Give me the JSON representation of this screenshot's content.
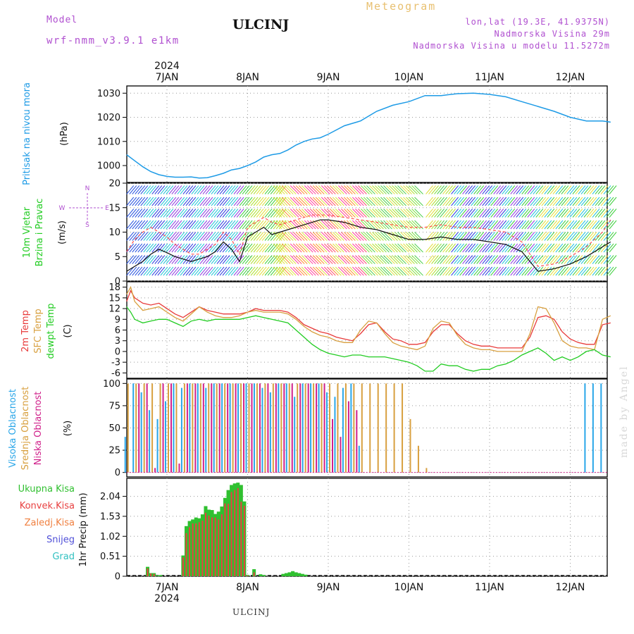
{
  "header": {
    "model_label": "Model",
    "model_name": "wrf-nmm_v3.9.1 e1km",
    "station": "ULCINJ",
    "title": "Meteogram",
    "location_line1": "lon,lat (19.3E, 41.9375N)",
    "location_line2": "Nadmorska Visina 29m",
    "location_line3": "Nadmorska Visina u modelu 11.5272m"
  },
  "footer": {
    "station": "ULCINJ",
    "watermark": "made by Angel"
  },
  "colors": {
    "pressure": "#1e9be6",
    "temp2m": "#e83a3a",
    "sfc": "#d8a040",
    "dew": "#22cc22",
    "high": "#29a6e8",
    "mid": "#d8a040",
    "low": "#d0208a",
    "total": "#30c030",
    "conv": "#e84040",
    "frozen": "#f08040",
    "snow": "#5050d8",
    "hail": "#30c0c0"
  },
  "chart_data": [
    {
      "type": "line",
      "panel": "pressure",
      "ylabel": "Pritisak na nivou mora",
      "unit": "(hPa)",
      "ylim": [
        993,
        1033
      ],
      "yticks": [
        1000,
        1010,
        1020,
        1030
      ],
      "x_dates": [
        "7JAN",
        "8JAN",
        "9JAN",
        "10JAN",
        "11JAN",
        "12JAN"
      ],
      "year": "2024",
      "x_days": [
        -0.5,
        -0.4,
        -0.3,
        -0.2,
        -0.1,
        0.0,
        0.1,
        0.2,
        0.3,
        0.4,
        0.5,
        0.6,
        0.7,
        0.8,
        0.9,
        1.0,
        1.1,
        1.2,
        1.3,
        1.4,
        1.5,
        1.6,
        1.7,
        1.8,
        1.9,
        2.0,
        2.2,
        2.4,
        2.6,
        2.8,
        3.0,
        3.2,
        3.4,
        3.6,
        3.8,
        4.0,
        4.2,
        4.4,
        4.6,
        4.8,
        5.0,
        5.2,
        5.4,
        5.5
      ],
      "values": [
        1004.5,
        1002,
        999.5,
        997.5,
        996.2,
        995.5,
        995.2,
        995.2,
        995.3,
        994.8,
        995,
        995.8,
        996.8,
        998.2,
        998.8,
        1000,
        1001.5,
        1003.5,
        1004.5,
        1005,
        1006.5,
        1008.5,
        1010,
        1011,
        1011.5,
        1013,
        1016.5,
        1018.5,
        1022.5,
        1025,
        1026.5,
        1029,
        1029,
        1029.8,
        1030,
        1029.5,
        1028.5,
        1026.5,
        1024.5,
        1022.5,
        1020,
        1018.5,
        1018.5,
        1018
      ]
    },
    {
      "type": "line",
      "panel": "wind",
      "ylabel": "10m Vjetar Brzina i Pravac",
      "unit": "(m/s)",
      "compass": {
        "n": "N",
        "s": "S",
        "e": "E",
        "w": "W"
      },
      "ylim": [
        0,
        20
      ],
      "yticks": [
        0,
        5,
        10,
        15,
        20
      ],
      "x_days": [
        -0.5,
        -0.4,
        -0.3,
        -0.2,
        -0.1,
        0.0,
        0.1,
        0.2,
        0.3,
        0.4,
        0.5,
        0.6,
        0.7,
        0.8,
        0.9,
        1.0,
        1.1,
        1.2,
        1.3,
        1.4,
        1.5,
        1.6,
        1.7,
        1.8,
        1.9,
        2.0,
        2.2,
        2.4,
        2.6,
        2.8,
        3.0,
        3.2,
        3.4,
        3.6,
        3.8,
        4.0,
        4.2,
        4.4,
        4.6,
        4.8,
        5.0,
        5.2,
        5.4,
        5.5
      ],
      "series": [
        {
          "name": "speed",
          "values": [
            2,
            3,
            4,
            5.5,
            6.5,
            5.8,
            5,
            4.5,
            4,
            4.5,
            5,
            6,
            8,
            6.5,
            4,
            9,
            10,
            11,
            9.5,
            10,
            10.5,
            11,
            11.5,
            12,
            12.5,
            12.5,
            12,
            11,
            10.5,
            9.5,
            8.5,
            8.5,
            9,
            8.5,
            8.5,
            8,
            7.5,
            6,
            2,
            2.5,
            3.5,
            5,
            7,
            8
          ]
        },
        {
          "name": "gust",
          "values": [
            6,
            8.5,
            10,
            11,
            10,
            9,
            7.5,
            6.5,
            5.5,
            5.5,
            6.5,
            7.5,
            10,
            8.5,
            5.5,
            11,
            12,
            13,
            12,
            11.5,
            12,
            12.5,
            13,
            13.5,
            13.5,
            13.5,
            13,
            12.5,
            12,
            11.5,
            11,
            11,
            11.5,
            11,
            11,
            10.5,
            10,
            8,
            3,
            3.5,
            5,
            7,
            10,
            12.5
          ]
        }
      ]
    },
    {
      "type": "line",
      "panel": "temperature",
      "ylabel_lines": [
        "2m Temp",
        "SFC Temp",
        "dewpt Temp"
      ],
      "unit": "(C)",
      "ylim": [
        -7.5,
        19.5
      ],
      "yticks": [
        -6,
        -3,
        0,
        3,
        6,
        9,
        12,
        15,
        18
      ],
      "x_days": [
        -0.5,
        -0.45,
        -0.4,
        -0.3,
        -0.2,
        -0.1,
        0.0,
        0.1,
        0.2,
        0.3,
        0.4,
        0.5,
        0.6,
        0.7,
        0.8,
        0.9,
        1.0,
        1.1,
        1.2,
        1.3,
        1.4,
        1.5,
        1.6,
        1.7,
        1.8,
        1.9,
        2.0,
        2.1,
        2.2,
        2.3,
        2.4,
        2.5,
        2.6,
        2.7,
        2.8,
        2.9,
        3.0,
        3.1,
        3.2,
        3.3,
        3.4,
        3.5,
        3.6,
        3.7,
        3.8,
        3.9,
        4.0,
        4.1,
        4.2,
        4.3,
        4.4,
        4.5,
        4.6,
        4.7,
        4.8,
        4.9,
        5.0,
        5.1,
        5.2,
        5.3,
        5.4,
        5.5
      ],
      "series": [
        {
          "name": "2m Temp",
          "values": [
            14,
            17,
            15,
            13.5,
            13,
            13.5,
            12,
            10.5,
            9.5,
            11,
            12.5,
            11.5,
            11,
            10.5,
            10.5,
            10.5,
            11,
            12,
            11.5,
            11.5,
            11.5,
            11,
            9.5,
            7.5,
            6.5,
            5.5,
            5,
            4,
            3.5,
            3,
            5,
            7.5,
            8,
            5.5,
            3.5,
            3,
            2,
            2,
            2.5,
            5.5,
            7.5,
            7.5,
            5,
            3,
            2,
            1.5,
            1.5,
            1,
            1,
            1,
            1,
            4,
            9.5,
            10,
            9,
            5.5,
            3.5,
            2.5,
            2,
            2,
            7.5,
            8
          ]
        },
        {
          "name": "SFC Temp",
          "values": [
            16,
            18,
            14,
            11.5,
            12,
            12.5,
            11,
            9.5,
            8.5,
            10.5,
            12.5,
            11,
            10,
            9.5,
            9.5,
            10,
            11,
            11.5,
            11,
            11,
            11,
            10.5,
            9,
            7,
            5.5,
            4.5,
            4,
            3,
            2.5,
            2.5,
            6,
            8.5,
            8,
            5,
            2.5,
            1.5,
            1,
            0.5,
            1.5,
            6.5,
            8.5,
            8,
            4.5,
            2,
            1,
            0.5,
            0.5,
            0,
            0,
            0,
            0,
            5,
            12.5,
            12,
            8,
            3,
            1.5,
            1,
            1,
            0.5,
            9,
            10
          ]
        },
        {
          "name": "dewpt Temp",
          "values": [
            12.5,
            11,
            9,
            8,
            8.5,
            9,
            9,
            8,
            7,
            8.5,
            9,
            8.5,
            9,
            9,
            9,
            9,
            9.5,
            10,
            9.5,
            9,
            8.5,
            8,
            6,
            4,
            2,
            0.5,
            -0.5,
            -1,
            -1.5,
            -1,
            -1,
            -1.5,
            -1.5,
            -1.5,
            -2,
            -2.5,
            -3,
            -4,
            -5.5,
            -5.5,
            -3.5,
            -4,
            -4,
            -5,
            -5.5,
            -5,
            -5,
            -4,
            -3.5,
            -2.5,
            -1,
            0,
            1,
            -0.5,
            -2.5,
            -1.5,
            -2.5,
            -1.5,
            0,
            0.5,
            -1,
            -1.5
          ]
        }
      ]
    },
    {
      "type": "bar",
      "panel": "clouds",
      "ylabel_lines": [
        "Visoka Oblacnost",
        "Srednja Oblacnost",
        "Niska Oblacnost"
      ],
      "unit": "(%)",
      "ylim": [
        -5,
        105
      ],
      "yticks": [
        0,
        25,
        50,
        75,
        100
      ],
      "x_days": [
        -0.5,
        -0.4,
        -0.3,
        -0.2,
        -0.1,
        0.0,
        0.1,
        0.2,
        0.3,
        0.4,
        0.5,
        0.6,
        0.7,
        0.8,
        0.9,
        1.0,
        1.1,
        1.2,
        1.3,
        1.4,
        1.5,
        1.6,
        1.7,
        1.8,
        1.9,
        2.0,
        2.1,
        2.2,
        2.3,
        2.4,
        2.5,
        2.6,
        2.7,
        2.8,
        2.9,
        3.0,
        3.1,
        3.2,
        3.3,
        3.4,
        4.2,
        4.3,
        4.4,
        4.5,
        4.6,
        4.7,
        4.8,
        4.9,
        5.0,
        5.1,
        5.2,
        5.3,
        5.4
      ],
      "series": [
        {
          "name": "Visoka Oblacnost",
          "values": [
            40,
            100,
            90,
            70,
            60,
            80,
            100,
            95,
            100,
            100,
            95,
            100,
            100,
            100,
            100,
            100,
            100,
            95,
            90,
            100,
            100,
            85,
            100,
            100,
            100,
            90,
            85,
            95,
            100,
            30,
            0,
            0,
            0,
            0,
            0,
            0,
            0,
            0,
            0,
            0,
            0,
            0,
            0,
            0,
            0,
            0,
            0,
            0,
            0,
            0,
            100,
            100,
            100
          ]
        },
        {
          "name": "Srednja Oblacnost",
          "values": [
            100,
            100,
            100,
            100,
            100,
            100,
            100,
            100,
            100,
            100,
            100,
            100,
            100,
            100,
            100,
            100,
            100,
            100,
            100,
            100,
            100,
            100,
            100,
            100,
            100,
            100,
            100,
            100,
            100,
            100,
            100,
            100,
            100,
            100,
            100,
            60,
            30,
            5,
            0,
            0,
            0,
            0,
            0,
            0,
            0,
            0,
            0,
            0,
            0,
            0,
            0,
            0,
            0
          ]
        },
        {
          "name": "Niska Oblacnost",
          "values": [
            0,
            100,
            100,
            5,
            100,
            100,
            10,
            100,
            100,
            100,
            100,
            100,
            100,
            100,
            100,
            100,
            100,
            100,
            100,
            100,
            100,
            100,
            100,
            100,
            100,
            60,
            40,
            80,
            70,
            0,
            0,
            0,
            0,
            0,
            0,
            0,
            0,
            0,
            0,
            0,
            0,
            0,
            0,
            0,
            0,
            0,
            0,
            0,
            0,
            0,
            0,
            0,
            0
          ]
        }
      ]
    },
    {
      "type": "bar",
      "panel": "precipitation",
      "ylabel": "1hr Precip (mm)",
      "legend": [
        "Ukupna Kisa",
        "Konvek.Kisa",
        "Zaledj.Kisa",
        "Snijeg",
        "Grad"
      ],
      "ylim": [
        0,
        2.5
      ],
      "yticks": [
        0,
        0.51,
        1.02,
        1.53,
        2.04
      ],
      "ytick_labels": [
        "0",
        "0.51",
        "1.02",
        "1.53",
        "2.04"
      ],
      "x_days": [
        -0.24,
        -0.2,
        -0.16,
        -0.12,
        -0.08,
        0.2,
        0.24,
        0.28,
        0.32,
        0.36,
        0.4,
        0.44,
        0.48,
        0.52,
        0.56,
        0.6,
        0.64,
        0.68,
        0.72,
        0.76,
        0.8,
        0.84,
        0.88,
        0.92,
        0.96,
        1.0,
        1.08,
        1.16,
        1.2,
        1.44,
        1.48,
        1.52,
        1.56,
        1.6,
        1.64,
        1.68,
        1.72
      ],
      "series": [
        {
          "name": "Ukupna Kisa",
          "values": [
            0.24,
            0.08,
            0.08,
            0.02,
            0.03,
            0.53,
            1.28,
            1.41,
            1.45,
            1.5,
            1.48,
            1.58,
            1.79,
            1.7,
            1.69,
            1.59,
            1.65,
            1.78,
            2.0,
            2.2,
            2.33,
            2.37,
            2.39,
            2.33,
            1.91,
            0.03,
            0.18,
            0.05,
            0.03,
            0.06,
            0.08,
            0.1,
            0.13,
            0.1,
            0.08,
            0.06,
            0.04
          ]
        },
        {
          "name": "Konvek.Kisa",
          "values": [
            0.2,
            0.07,
            0.06,
            0,
            0,
            0.48,
            1.1,
            1.25,
            1.35,
            1.35,
            1.38,
            1.42,
            1.62,
            1.55,
            1.5,
            1.5,
            1.45,
            1.58,
            1.86,
            1.85,
            2.15,
            2.2,
            2.25,
            1.9,
            1.8,
            0.02,
            0.1,
            0,
            0,
            0,
            0,
            0,
            0,
            0,
            0,
            0,
            0
          ]
        },
        {
          "name": "Zaledj.Kisa",
          "values": []
        },
        {
          "name": "Snijeg",
          "values": []
        },
        {
          "name": "Grad",
          "values": []
        }
      ]
    }
  ]
}
